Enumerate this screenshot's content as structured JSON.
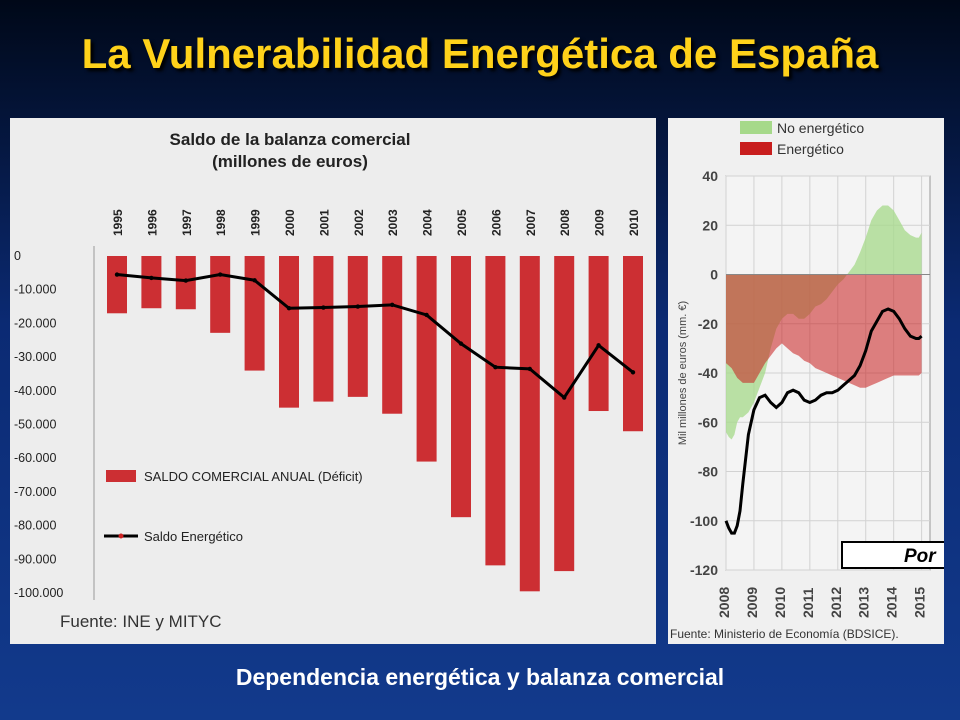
{
  "slide": {
    "title": "La Vulnerabilidad Energética de España",
    "caption": "Dependencia energética y balanza comercial"
  },
  "chart_data": [
    {
      "type": "bar",
      "title": "Saldo de la balanza comercial",
      "subtitle": "(millones de euros)",
      "categories": [
        "1995",
        "1996",
        "1997",
        "1998",
        "1999",
        "2000",
        "2001",
        "2002",
        "2003",
        "2004",
        "2005",
        "2006",
        "2007",
        "2008",
        "2009",
        "2010"
      ],
      "series": [
        {
          "name": "SALDO COMERCIAL ANUAL (Déficit)",
          "type": "bar",
          "color": "#cc2f33",
          "values": [
            -17000,
            -15500,
            -15800,
            -22800,
            -34000,
            -45000,
            -43200,
            -41800,
            -46800,
            -61000,
            -77500,
            -91800,
            -99500,
            -93500,
            -46000,
            -52000
          ]
        },
        {
          "name": "Saldo Energético",
          "type": "line",
          "color": "#000000",
          "values": [
            -5500,
            -6500,
            -7300,
            -5500,
            -7200,
            -15500,
            -15300,
            -15000,
            -14500,
            -17500,
            -26000,
            -33000,
            -33500,
            -42000,
            -26500,
            -34500
          ]
        }
      ],
      "y_ticks": [
        "0",
        "-10.000",
        "-20.000",
        "-30.000",
        "-40.000",
        "-50.000",
        "-60.000",
        "-70.000",
        "-80.000",
        "-90.000",
        "-100.000"
      ],
      "ylim": [
        -100000,
        0
      ],
      "legend_position": "inside-bottom-left",
      "source": "Fuente: INE y MITYC"
    },
    {
      "type": "area",
      "ylabel": "Mil millones de euros (mm. €)",
      "y_ticks": [
        "40",
        "20",
        "0",
        "-20",
        "-40",
        "-60",
        "-80",
        "-100",
        "-120"
      ],
      "ylim": [
        -120,
        40
      ],
      "x_ticks": [
        "2008",
        "2009",
        "2010",
        "2011",
        "2012",
        "2013",
        "2014",
        "2015"
      ],
      "x": [
        2008.0,
        2008.1,
        2008.2,
        2008.3,
        2008.4,
        2008.5,
        2008.6,
        2008.8,
        2009.0,
        2009.2,
        2009.4,
        2009.6,
        2009.8,
        2010.0,
        2010.2,
        2010.4,
        2010.6,
        2010.8,
        2011.0,
        2011.2,
        2011.4,
        2011.6,
        2011.8,
        2012.0,
        2012.2,
        2012.4,
        2012.6,
        2012.8,
        2013.0,
        2013.2,
        2013.4,
        2013.6,
        2013.8,
        2014.0,
        2014.2,
        2014.4,
        2014.6,
        2014.8,
        2014.9,
        2015.0
      ],
      "series": [
        {
          "name": "No energético",
          "color": "#a6d98a",
          "values": [
            -64,
            -66,
            -67,
            -65,
            -60,
            -58,
            -58,
            -56,
            -52,
            -46,
            -40,
            -30,
            -22,
            -18,
            -16,
            -16,
            -18,
            -18,
            -16,
            -13,
            -12,
            -10,
            -7,
            -4,
            -2,
            1,
            4,
            9,
            15,
            22,
            26,
            28,
            28,
            26,
            22,
            18,
            16,
            15,
            15,
            17
          ]
        },
        {
          "name": "Energético",
          "color": "#c81e1e",
          "values": [
            -36,
            -37,
            -38,
            -40,
            -42,
            -43,
            -44,
            -44,
            -44,
            -40,
            -36,
            -33,
            -30,
            -28,
            -30,
            -32,
            -33,
            -35,
            -36,
            -38,
            -39,
            -40,
            -41,
            -42,
            -43,
            -44,
            -45,
            -46,
            -46,
            -45,
            -44,
            -43,
            -42,
            -41,
            -41,
            -41,
            -41,
            -41,
            -41,
            -40
          ]
        },
        {
          "name": "Saldo",
          "color": "#000000",
          "values": [
            -100,
            -103,
            -105,
            -105,
            -102,
            -96,
            -85,
            -65,
            -55,
            -50,
            -49,
            -52,
            -54,
            -52,
            -48,
            -47,
            -48,
            -51,
            -52,
            -51,
            -49,
            -48,
            -48,
            -47,
            -45,
            -43,
            -41,
            -37,
            -31,
            -23,
            -19,
            -15,
            -14,
            -15,
            -18,
            -22,
            -25,
            -26,
            -26,
            -25
          ]
        }
      ],
      "legend_position": "top-left",
      "overlay_label": "Por",
      "source": "Fuente: Ministerio de Economía (BDSICE)."
    }
  ]
}
